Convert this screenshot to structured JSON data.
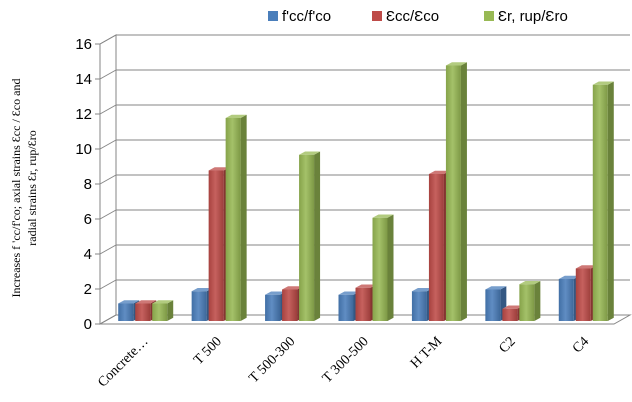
{
  "chart_data": {
    "type": "bar",
    "categories": [
      "Concrete…",
      "T 500",
      "T 500-300",
      "T 300-500",
      "H T-M",
      "C2",
      "C4"
    ],
    "series": [
      {
        "name": "f'cc/f'co",
        "color": "#4a7ebb",
        "values": [
          1.0,
          1.7,
          1.5,
          1.5,
          1.7,
          1.8,
          2.4
        ]
      },
      {
        "name": "Ɛcc/Ɛco",
        "color": "#be4b48",
        "values": [
          1.0,
          8.6,
          1.8,
          1.9,
          8.4,
          0.7,
          3.0
        ]
      },
      {
        "name": "Ɛr, rup/Ɛro",
        "color": "#98b954",
        "values": [
          1.0,
          11.6,
          9.5,
          5.9,
          14.6,
          2.1,
          13.5
        ]
      }
    ],
    "ylabel_lines": [
      "Increases f 'cc/f'co; axial strains Ɛcc / Ɛco and",
      "radial strains Ɛr, rup/Ɛro"
    ],
    "ylim": [
      0,
      16
    ],
    "yticks": [
      0,
      2,
      4,
      6,
      8,
      10,
      12,
      14,
      16
    ],
    "grid": true,
    "legend_position": "top",
    "style": "3d-clustered-column"
  }
}
